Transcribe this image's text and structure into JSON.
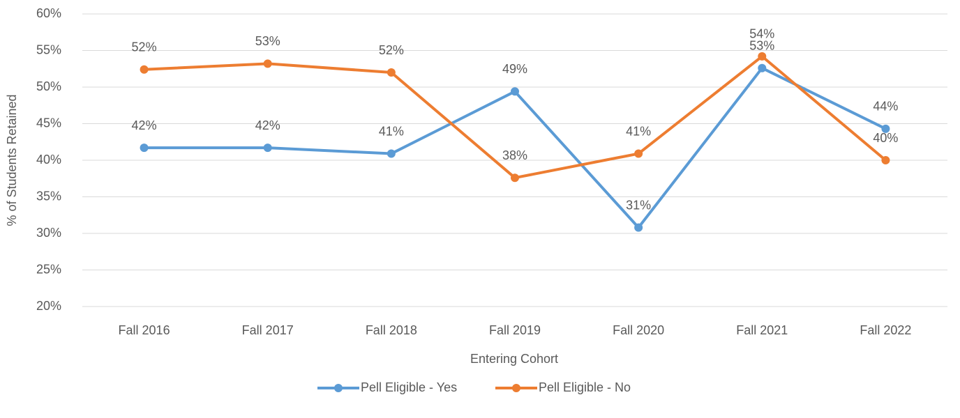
{
  "chart_data": {
    "type": "line",
    "x_label": "Entering Cohort",
    "y_label": "% of Students Retained",
    "categories": [
      "Fall 2016",
      "Fall 2017",
      "Fall 2018",
      "Fall 2019",
      "Fall 2020",
      "Fall 2021",
      "Fall 2022"
    ],
    "series": [
      {
        "name": "Pell Eligible - Yes",
        "color": "#5b9bd5",
        "values": [
          41.7,
          41.7,
          40.9,
          49.4,
          30.8,
          52.6,
          44.3
        ],
        "value_labels": [
          "42%",
          "42%",
          "41%",
          "49%",
          "31%",
          "53%",
          "44%"
        ]
      },
      {
        "name": "Pell Eligible - No",
        "color": "#ed7d31",
        "values": [
          52.4,
          53.2,
          52.0,
          37.6,
          40.9,
          54.2,
          40.0
        ],
        "value_labels": [
          "52%",
          "53%",
          "52%",
          "38%",
          "41%",
          "54%",
          "40%"
        ]
      }
    ],
    "ylim": [
      20,
      60
    ],
    "yticks": [
      {
        "value": 20,
        "label": "20%"
      },
      {
        "value": 25,
        "label": "25%"
      },
      {
        "value": 30,
        "label": "30%"
      },
      {
        "value": 35,
        "label": "35%"
      },
      {
        "value": 40,
        "label": "40%"
      },
      {
        "value": 45,
        "label": "45%"
      },
      {
        "value": 50,
        "label": "50%"
      },
      {
        "value": 55,
        "label": "55%"
      },
      {
        "value": 60,
        "label": "60%"
      }
    ],
    "grid": true,
    "legend": "bottom"
  }
}
